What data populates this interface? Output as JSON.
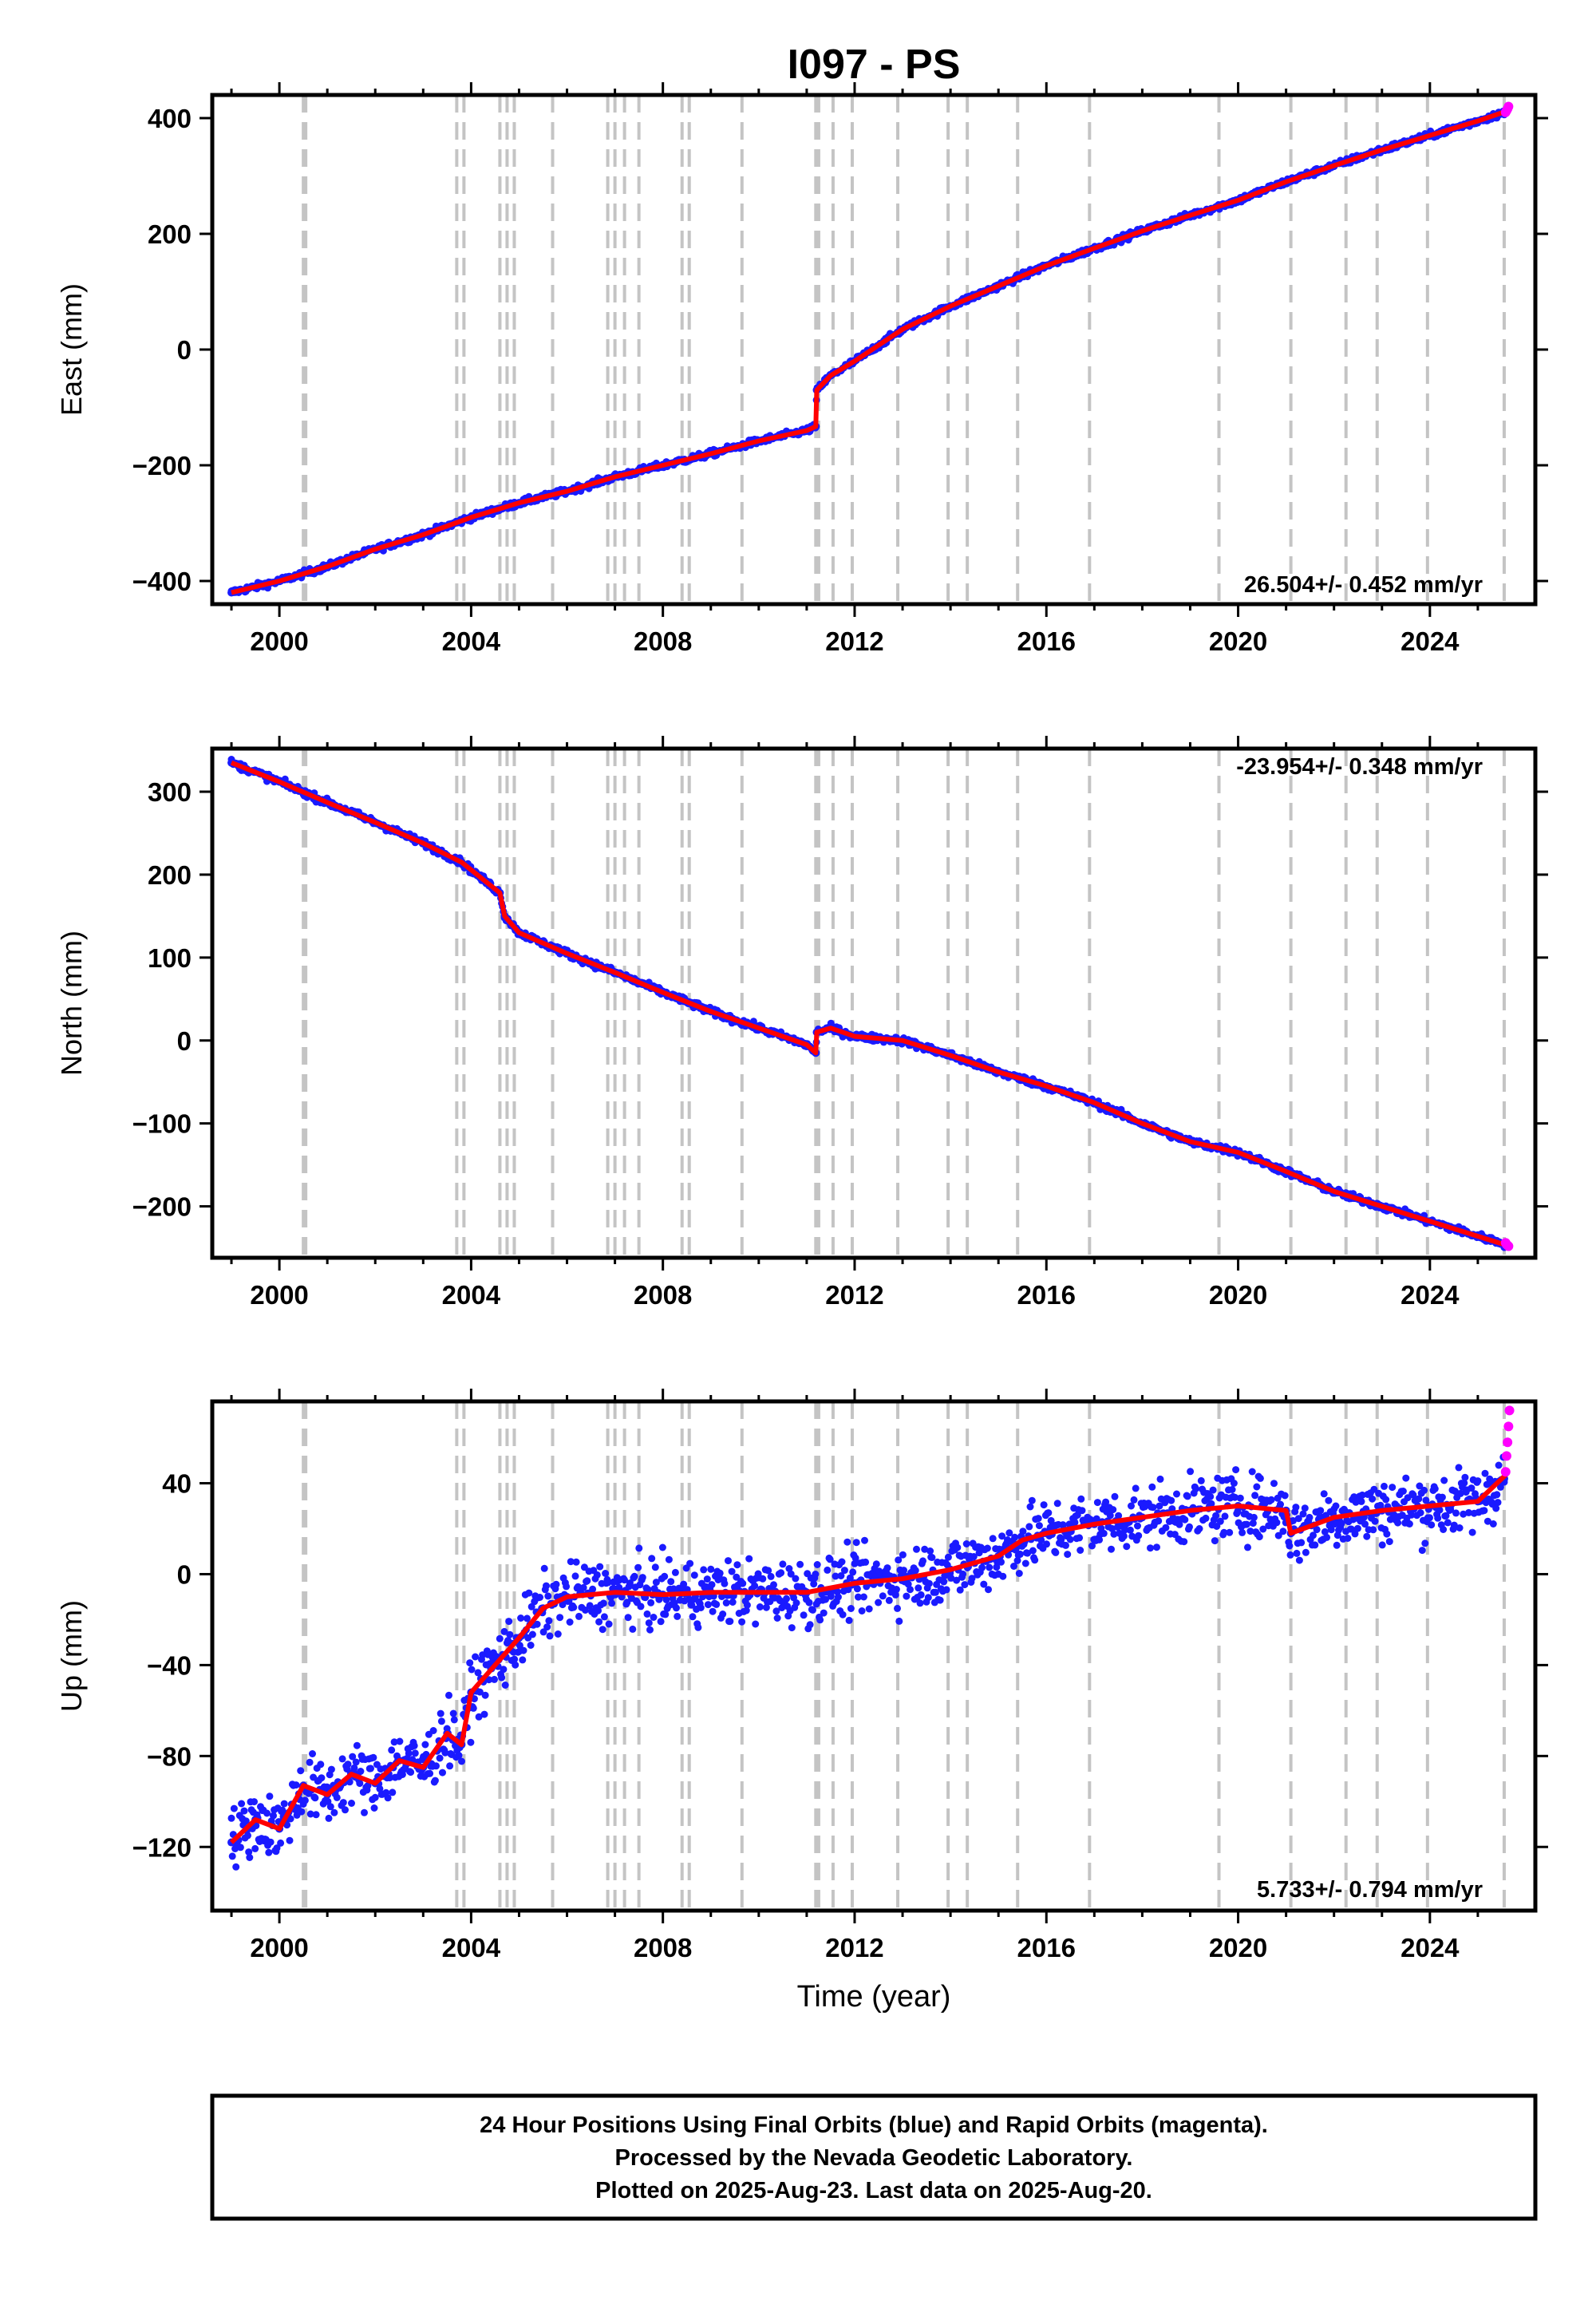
{
  "chart_data": [
    {
      "type": "scatter",
      "title": "I097 - PS",
      "xlabel": "",
      "ylabel": "East (mm)",
      "xlim": [
        1998.6,
        2026.2
      ],
      "ylim": [
        -440,
        440
      ],
      "xticks": [
        2000,
        2004,
        2008,
        2012,
        2016,
        2020,
        2024
      ],
      "yticks": [
        -400,
        -200,
        0,
        200,
        400
      ],
      "ytick_labels": [
        "−400",
        "−200",
        "0",
        "200",
        "400"
      ],
      "rate_text": "26.504+/- 0.452 mm/yr",
      "rate_position": "bottom-right",
      "series": [
        {
          "name": "Final Orbits",
          "color": "#1a1aff",
          "x": [
            1999.0,
            2000.0,
            2001.0,
            2002.0,
            2003.0,
            2004.0,
            2005.0,
            2006.0,
            2007.0,
            2008.0,
            2009.0,
            2010.0,
            2011.0,
            2011.19,
            2011.21,
            2011.5,
            2012.0,
            2013.0,
            2014.0,
            2015.0,
            2016.0,
            2017.0,
            2018.0,
            2019.0,
            2020.0,
            2021.0,
            2022.0,
            2023.0,
            2024.0,
            2025.0,
            2025.55
          ],
          "y": [
            -420,
            -400,
            -375,
            -345,
            -320,
            -290,
            -265,
            -245,
            -220,
            -200,
            -180,
            -158,
            -140,
            -133,
            -70,
            -45,
            -20,
            35,
            75,
            110,
            145,
            175,
            205,
            232,
            258,
            290,
            318,
            345,
            370,
            395,
            410
          ]
        },
        {
          "name": "Rapid Orbits",
          "color": "#ff00ff",
          "x": [
            2025.58,
            2025.6,
            2025.62,
            2025.64
          ],
          "y": [
            410,
            413,
            416,
            420
          ]
        },
        {
          "name": "Model",
          "color": "#ff0000",
          "x": [
            1999.0,
            2000.0,
            2001.0,
            2002.0,
            2003.0,
            2004.0,
            2005.0,
            2006.0,
            2007.0,
            2008.0,
            2009.0,
            2010.0,
            2011.0,
            2011.19,
            2011.21,
            2011.5,
            2012.0,
            2013.0,
            2014.0,
            2015.0,
            2016.0,
            2017.0,
            2018.0,
            2019.0,
            2020.0,
            2021.0,
            2022.0,
            2023.0,
            2024.0,
            2025.0,
            2025.6
          ],
          "y": [
            -420,
            -400,
            -375,
            -345,
            -320,
            -290,
            -265,
            -245,
            -220,
            -200,
            -180,
            -158,
            -140,
            -133,
            -70,
            -45,
            -20,
            35,
            75,
            110,
            145,
            175,
            205,
            232,
            258,
            290,
            318,
            345,
            370,
            395,
            412
          ]
        }
      ]
    },
    {
      "type": "scatter",
      "title": "",
      "xlabel": "",
      "ylabel": "North (mm)",
      "xlim": [
        1998.6,
        2026.2
      ],
      "ylim": [
        -262,
        352
      ],
      "xticks": [
        2000,
        2004,
        2008,
        2012,
        2016,
        2020,
        2024
      ],
      "yticks": [
        -200,
        -100,
        0,
        100,
        200,
        300
      ],
      "ytick_labels": [
        "−200",
        "−100",
        "0",
        "100",
        "200",
        "300"
      ],
      "rate_text": "-23.954+/- 0.348 mm/yr",
      "rate_position": "top-right",
      "series": [
        {
          "name": "Final Orbits",
          "color": "#1a1aff",
          "x": [
            1999.0,
            2000.0,
            2001.0,
            2002.0,
            2003.0,
            2003.8,
            2004.6,
            2004.7,
            2005.0,
            2006.0,
            2007.0,
            2008.0,
            2009.0,
            2010.0,
            2011.0,
            2011.19,
            2011.21,
            2011.5,
            2012.0,
            2013.0,
            2014.0,
            2015.0,
            2016.0,
            2017.0,
            2018.0,
            2019.0,
            2020.0,
            2021.0,
            2022.0,
            2023.0,
            2024.0,
            2025.0,
            2025.55
          ],
          "y": [
            335,
            312,
            287,
            263,
            238,
            215,
            178,
            150,
            130,
            105,
            82,
            58,
            35,
            15,
            -5,
            -15,
            10,
            15,
            5,
            0,
            -18,
            -38,
            -55,
            -75,
            -100,
            -122,
            -135,
            -158,
            -182,
            -200,
            -218,
            -236,
            -245
          ]
        },
        {
          "name": "Rapid Orbits",
          "color": "#ff00ff",
          "x": [
            2025.58,
            2025.6,
            2025.62,
            2025.64
          ],
          "y": [
            -244,
            -246,
            -247,
            -248
          ]
        },
        {
          "name": "Model",
          "color": "#ff0000",
          "x": [
            1999.0,
            2000.0,
            2001.0,
            2002.0,
            2003.0,
            2003.8,
            2004.6,
            2004.7,
            2005.0,
            2006.0,
            2007.0,
            2008.0,
            2009.0,
            2010.0,
            2011.0,
            2011.19,
            2011.21,
            2011.5,
            2012.0,
            2013.0,
            2014.0,
            2015.0,
            2016.0,
            2017.0,
            2018.0,
            2019.0,
            2020.0,
            2021.0,
            2022.0,
            2023.0,
            2024.0,
            2025.0,
            2025.6
          ],
          "y": [
            335,
            312,
            287,
            263,
            238,
            215,
            178,
            150,
            130,
            105,
            82,
            58,
            35,
            15,
            -5,
            -15,
            10,
            15,
            5,
            0,
            -18,
            -38,
            -55,
            -75,
            -100,
            -122,
            -135,
            -158,
            -182,
            -200,
            -218,
            -236,
            -247
          ]
        }
      ]
    },
    {
      "type": "scatter",
      "title": "",
      "xlabel": "Time (year)",
      "ylabel": "Up (mm)",
      "xlim": [
        1998.6,
        2026.2
      ],
      "ylim": [
        -148,
        76
      ],
      "xticks": [
        2000,
        2004,
        2008,
        2012,
        2016,
        2020,
        2024
      ],
      "yticks": [
        -120,
        -80,
        -40,
        0,
        40
      ],
      "ytick_labels": [
        "−120",
        "−80",
        "−40",
        "0",
        "40"
      ],
      "rate_text": "5.733+/- 0.794 mm/yr",
      "rate_position": "bottom-right",
      "series": [
        {
          "name": "Final Orbits",
          "color": "#1a1aff",
          "x": [
            1999.0,
            1999.5,
            2000.0,
            2000.5,
            2001.0,
            2001.5,
            2002.0,
            2002.5,
            2003.0,
            2003.5,
            2003.8,
            2004.0,
            2004.5,
            2005.0,
            2005.5,
            2006.0,
            2007.0,
            2008.0,
            2009.0,
            2010.0,
            2011.0,
            2012.0,
            2013.0,
            2014.0,
            2015.0,
            2015.5,
            2016.0,
            2017.0,
            2018.0,
            2019.0,
            2020.0,
            2021.0,
            2021.1,
            2022.0,
            2023.0,
            2024.0,
            2025.0,
            2025.55
          ],
          "y": [
            -118,
            -108,
            -112,
            -93,
            -97,
            -88,
            -92,
            -82,
            -85,
            -70,
            -75,
            -52,
            -40,
            -28,
            -15,
            -10,
            -8,
            -9,
            -8,
            -8,
            -8,
            -4,
            -2,
            2,
            8,
            15,
            18,
            22,
            25,
            28,
            30,
            28,
            18,
            25,
            28,
            30,
            32,
            42
          ]
        },
        {
          "name": "Rapid Orbits",
          "color": "#ff00ff",
          "x": [
            2025.58,
            2025.6,
            2025.62,
            2025.64,
            2025.66
          ],
          "y": [
            45,
            52,
            58,
            65,
            72
          ]
        },
        {
          "name": "Model",
          "color": "#ff0000",
          "x": [
            1999.0,
            1999.5,
            2000.0,
            2000.5,
            2001.0,
            2001.5,
            2002.0,
            2002.5,
            2003.0,
            2003.5,
            2003.8,
            2004.0,
            2004.5,
            2005.0,
            2005.5,
            2006.0,
            2007.0,
            2008.0,
            2009.0,
            2010.0,
            2011.0,
            2012.0,
            2013.0,
            2014.0,
            2015.0,
            2015.5,
            2016.0,
            2017.0,
            2018.0,
            2019.0,
            2020.0,
            2021.0,
            2021.1,
            2022.0,
            2023.0,
            2024.0,
            2025.0,
            2025.6
          ],
          "y": [
            -118,
            -108,
            -112,
            -93,
            -97,
            -88,
            -92,
            -82,
            -85,
            -70,
            -75,
            -52,
            -40,
            -28,
            -15,
            -10,
            -8,
            -9,
            -8,
            -8,
            -8,
            -4,
            -2,
            2,
            8,
            15,
            18,
            22,
            25,
            28,
            30,
            28,
            18,
            25,
            28,
            30,
            32,
            44
          ]
        }
      ]
    }
  ],
  "offset_lines": {
    "color": "#c4c4c4",
    "years": [
      2000.5,
      2000.55,
      2003.7,
      2003.85,
      2004.6,
      2004.75,
      2004.9,
      2005.7,
      2006.85,
      2007.0,
      2007.2,
      2007.5,
      2008.4,
      2008.55,
      2009.65,
      2011.19,
      2011.25,
      2011.55,
      2011.95,
      2012.9,
      2013.95,
      2014.35,
      2015.4,
      2016.9,
      2019.6,
      2021.1,
      2022.25,
      2022.9,
      2023.95,
      2025.55
    ]
  },
  "footer": {
    "line1": "24 Hour Positions Using Final Orbits (blue) and Rapid Orbits (magenta).",
    "line2": "Processed by the Nevada Geodetic Laboratory.",
    "line3": "Plotted on 2025-Aug-23. Last data on 2025-Aug-20."
  }
}
